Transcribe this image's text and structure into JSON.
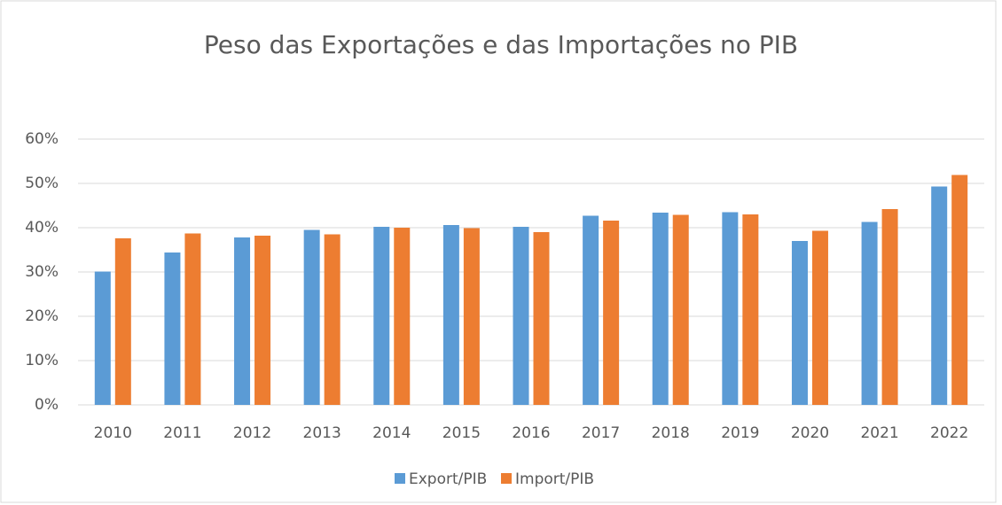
{
  "chart_data": {
    "type": "bar",
    "title": "Peso das Exportações e das Importações no PIB",
    "categories": [
      "2010",
      "2011",
      "2012",
      "2013",
      "2014",
      "2015",
      "2016",
      "2017",
      "2018",
      "2019",
      "2020",
      "2021",
      "2022"
    ],
    "series": [
      {
        "name": "Export/PIB",
        "color": "#5b9bd5",
        "values": [
          30.1,
          34.4,
          37.8,
          39.5,
          40.2,
          40.6,
          40.2,
          42.7,
          43.4,
          43.5,
          37.0,
          41.3,
          49.3
        ]
      },
      {
        "name": "Import/PIB",
        "color": "#ed7d31",
        "values": [
          37.6,
          38.7,
          38.2,
          38.5,
          40.0,
          39.9,
          39.0,
          41.6,
          42.9,
          43.0,
          39.3,
          44.2,
          51.9
        ]
      }
    ],
    "ylim": [
      0,
      60
    ],
    "yticks": [
      {
        "value": 0,
        "label": "0%"
      },
      {
        "value": 10,
        "label": "10%"
      },
      {
        "value": 20,
        "label": "20%"
      },
      {
        "value": 30,
        "label": "30%"
      },
      {
        "value": 40,
        "label": "40%"
      },
      {
        "value": 50,
        "label": "50%"
      },
      {
        "value": 60,
        "label": "60%"
      }
    ],
    "grid": true,
    "legend": "bottom"
  }
}
